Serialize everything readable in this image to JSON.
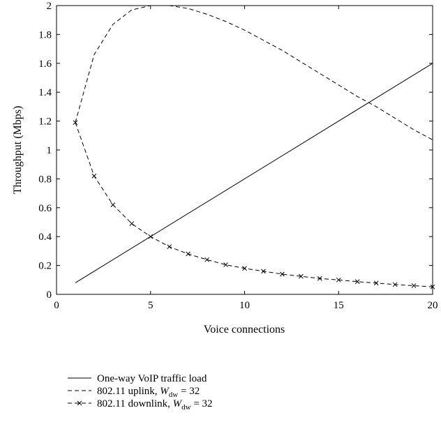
{
  "chart_data": {
    "type": "line",
    "title": "",
    "xlabel": "Voice connections",
    "ylabel": "Throughput (Mbps)",
    "xlim": [
      0,
      20
    ],
    "ylim": [
      0,
      2
    ],
    "xticks": [
      "0",
      "5",
      "10",
      "15",
      "20"
    ],
    "yticks": [
      "0",
      "0.2",
      "0.4",
      "0.6",
      "0.8",
      "1",
      "1.2",
      "1.4",
      "1.6",
      "1.8",
      "2"
    ],
    "grid": false,
    "legend_position": "below-plot",
    "series": [
      {
        "name": "One-way VoIP traffic load",
        "style": "solid",
        "marker": "none",
        "x": [
          1,
          20
        ],
        "y": [
          0.08,
          1.6
        ]
      },
      {
        "name": "802.11 uplink, W_dw = 32",
        "legend_parts": {
          "prefix": "802.11 uplink, ",
          "var": "W",
          "sub": "dw",
          "suffix": " = 32"
        },
        "style": "dashed",
        "marker": "none",
        "x": [
          1,
          2,
          3,
          4,
          5,
          6,
          7,
          8,
          9,
          10,
          11,
          12,
          13,
          14,
          15,
          16,
          17,
          18,
          19,
          20
        ],
        "y": [
          1.19,
          1.66,
          1.87,
          1.97,
          2.0,
          2.0,
          1.98,
          1.94,
          1.89,
          1.83,
          1.76,
          1.69,
          1.61,
          1.53,
          1.45,
          1.37,
          1.3,
          1.22,
          1.14,
          1.07
        ]
      },
      {
        "name": "802.11 downlink, W_dw = 32",
        "legend_parts": {
          "prefix": "802.11 downlink, ",
          "var": "W",
          "sub": "dw",
          "suffix": " = 32"
        },
        "style": "dashed",
        "marker": "x",
        "x": [
          1,
          2,
          3,
          4,
          5,
          6,
          7,
          8,
          9,
          10,
          11,
          12,
          13,
          14,
          15,
          16,
          17,
          18,
          19,
          20
        ],
        "y": [
          1.19,
          0.82,
          0.62,
          0.49,
          0.4,
          0.33,
          0.28,
          0.24,
          0.205,
          0.18,
          0.16,
          0.14,
          0.125,
          0.11,
          0.1,
          0.088,
          0.078,
          0.068,
          0.06,
          0.052
        ]
      }
    ]
  }
}
